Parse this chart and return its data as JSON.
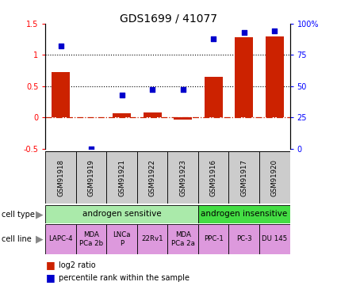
{
  "title": "GDS1699 / 41077",
  "samples": [
    "GSM91918",
    "GSM91919",
    "GSM91921",
    "GSM91922",
    "GSM91923",
    "GSM91916",
    "GSM91917",
    "GSM91920"
  ],
  "log2_ratio": [
    0.73,
    0.0,
    0.07,
    0.08,
    -0.04,
    0.65,
    1.28,
    1.3
  ],
  "pct_rank": [
    82,
    0,
    43,
    47,
    47,
    88,
    93,
    94
  ],
  "cell_types": [
    {
      "label": "androgen sensitive",
      "start": 0,
      "end": 5,
      "color": "#aaeaaa"
    },
    {
      "label": "androgen insensitive",
      "start": 5,
      "end": 8,
      "color": "#44dd44"
    }
  ],
  "cell_lines": [
    {
      "label": "LAPC-4",
      "start": 0,
      "end": 1
    },
    {
      "label": "MDA\nPCa 2b",
      "start": 1,
      "end": 2
    },
    {
      "label": "LNCa\nP",
      "start": 2,
      "end": 3
    },
    {
      "label": "22Rv1",
      "start": 3,
      "end": 4
    },
    {
      "label": "MDA\nPCa 2a",
      "start": 4,
      "end": 5
    },
    {
      "label": "PPC-1",
      "start": 5,
      "end": 6
    },
    {
      "label": "PC-3",
      "start": 6,
      "end": 7
    },
    {
      "label": "DU 145",
      "start": 7,
      "end": 8
    }
  ],
  "cell_line_color": "#dd99dd",
  "bar_color": "#cc2200",
  "dot_color": "#0000cc",
  "ylim": [
    -0.5,
    1.5
  ],
  "y2lim": [
    0,
    100
  ],
  "yticks_left": [
    -0.5,
    0,
    0.5,
    1.0,
    1.5
  ],
  "ytick_labels_left": [
    "-0.5",
    "0",
    "0.5",
    "1",
    "1.5"
  ],
  "yticks_right": [
    0,
    25,
    50,
    75,
    100
  ],
  "ytick_labels_right": [
    "0",
    "25",
    "50",
    "75",
    "100%"
  ],
  "hlines": [
    0.5,
    1.0
  ],
  "zero_line_y": 0,
  "sample_box_color": "#cccccc",
  "label_fontsize": 7,
  "title_fontsize": 10,
  "legend_red_label": "log2 ratio",
  "legend_blue_label": "percentile rank within the sample"
}
